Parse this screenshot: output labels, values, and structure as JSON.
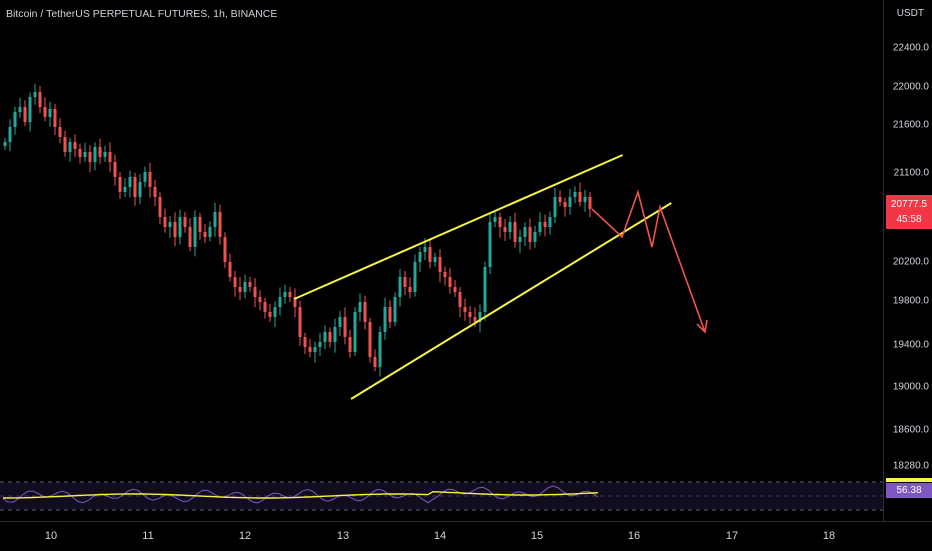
{
  "chart": {
    "title": "Bitcoin / TetherUS PERPETUAL FUTURES, 1h, BINANCE",
    "currency": "USDT",
    "price_badge": {
      "price": "20777.5",
      "countdown": "45:58"
    },
    "rsi_value": "56.38",
    "colors": {
      "up": "#26a69a",
      "down": "#ef5350",
      "trendline": "#f5f542",
      "projection": "#ef5350",
      "rsi": "#7e57c2",
      "rsi_ma": "#f5f542"
    }
  },
  "chart_data": {
    "type": "candlestick",
    "price_ticks": [
      "22400.0",
      "22000.0",
      "21600.0",
      "21100.0",
      "20777.5",
      "20200.0",
      "19800.0",
      "19400.0",
      "19000.0",
      "18600.0",
      "18280.0"
    ],
    "date_ticks": [
      "10",
      "11",
      "12",
      "13",
      "14",
      "15",
      "16",
      "17",
      "18"
    ],
    "ylim": [
      18200,
      22750
    ],
    "trendlines": [
      {
        "from": [
          "12 12:00",
          19880
        ],
        "to": [
          "15 21:00",
          21320
        ]
      },
      {
        "from": [
          "13 02:00",
          18880
        ],
        "to": [
          "16 09:00",
          20840
        ]
      }
    ],
    "projection": [
      20780,
      20500,
      20950,
      20400,
      20800,
      19550
    ],
    "closes": [
      21450,
      21600,
      21750,
      21800,
      21650,
      21900,
      21950,
      21800,
      21700,
      21780,
      21600,
      21500,
      21350,
      21450,
      21380,
      21300,
      21350,
      21250,
      21400,
      21300,
      21350,
      21250,
      21100,
      20950,
      21000,
      21100,
      20900,
      21050,
      21150,
      21000,
      20900,
      20700,
      20600,
      20650,
      20500,
      20700,
      20600,
      20400,
      20700,
      20550,
      20500,
      20600,
      20750,
      20500,
      20250,
      20100,
      20000,
      19950,
      20050,
      20000,
      19900,
      19850,
      19750,
      19700,
      19800,
      19900,
      19950,
      19900,
      19800,
      19500,
      19400,
      19350,
      19400,
      19450,
      19550,
      19450,
      19600,
      19700,
      19500,
      19350,
      19750,
      19850,
      19650,
      19300,
      19200,
      19550,
      19800,
      19650,
      19900,
      20100,
      20000,
      19950,
      20250,
      20350,
      20400,
      20250,
      20300,
      20150,
      20100,
      20000,
      19950,
      19800,
      19750,
      19700,
      19650,
      19750,
      20200,
      20650,
      20700,
      20600,
      20550,
      20650,
      20450,
      20500,
      20600,
      20450,
      20550,
      20650,
      20600,
      20700,
      20900,
      20850,
      20800,
      20900,
      20950,
      20850,
      20900,
      20780
    ]
  }
}
